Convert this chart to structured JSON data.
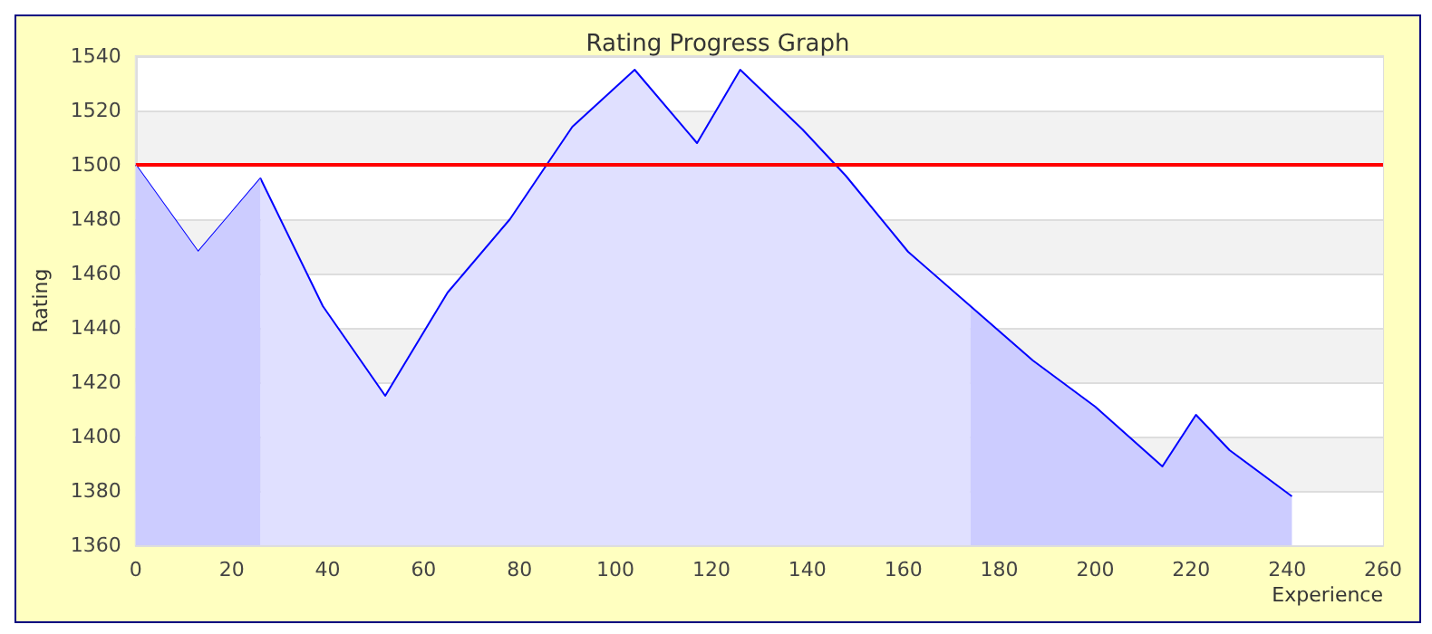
{
  "chart_data": {
    "type": "area",
    "title": "Rating Progress Graph",
    "xlabel": "Experience",
    "ylabel": "Rating",
    "xlim": [
      0,
      260
    ],
    "xticks": [
      0,
      20,
      40,
      60,
      80,
      100,
      120,
      140,
      160,
      180,
      200,
      220,
      240,
      260
    ],
    "ylim": [
      1360,
      1540
    ],
    "yticks": [
      1360,
      1380,
      1400,
      1420,
      1440,
      1460,
      1480,
      1500,
      1520,
      1540
    ],
    "grid": "y",
    "marker": "none",
    "line_style": "solid",
    "series": [
      {
        "color": "#ccccff",
        "x": [
          0,
          13,
          26
        ],
        "values": [
          1500,
          1468,
          1495
        ]
      },
      {
        "color": "#e0e0ff",
        "x": [
          26,
          39,
          52,
          65,
          78,
          91,
          104,
          117,
          126,
          139,
          148,
          161,
          174
        ],
        "values": [
          1495,
          1448,
          1415,
          1453,
          1480,
          1514,
          1535,
          1508,
          1535,
          1513,
          1496,
          1468,
          1448
        ]
      },
      {
        "color": "#ccccff",
        "x": [
          174,
          187,
          200,
          207,
          214,
          221,
          228,
          241
        ],
        "values": [
          1448,
          1428,
          1411,
          1400,
          1389,
          1408,
          1395,
          1378
        ]
      },
      {
        "type": "line",
        "color": "#0000ff",
        "x": [
          0,
          13,
          26,
          39,
          52,
          65,
          78,
          91,
          104,
          117,
          126,
          139,
          148,
          161,
          174,
          187,
          200,
          207,
          214,
          221,
          228,
          241
        ],
        "values": [
          1500,
          1468,
          1495,
          1448,
          1415,
          1453,
          1480,
          1514,
          1535,
          1508,
          1535,
          1513,
          1496,
          1468,
          1448,
          1428,
          1411,
          1400,
          1389,
          1408,
          1395,
          1378
        ]
      }
    ],
    "ref_lines": [
      {
        "axis": "y",
        "value": 1500,
        "color": "#ff0000"
      }
    ]
  }
}
